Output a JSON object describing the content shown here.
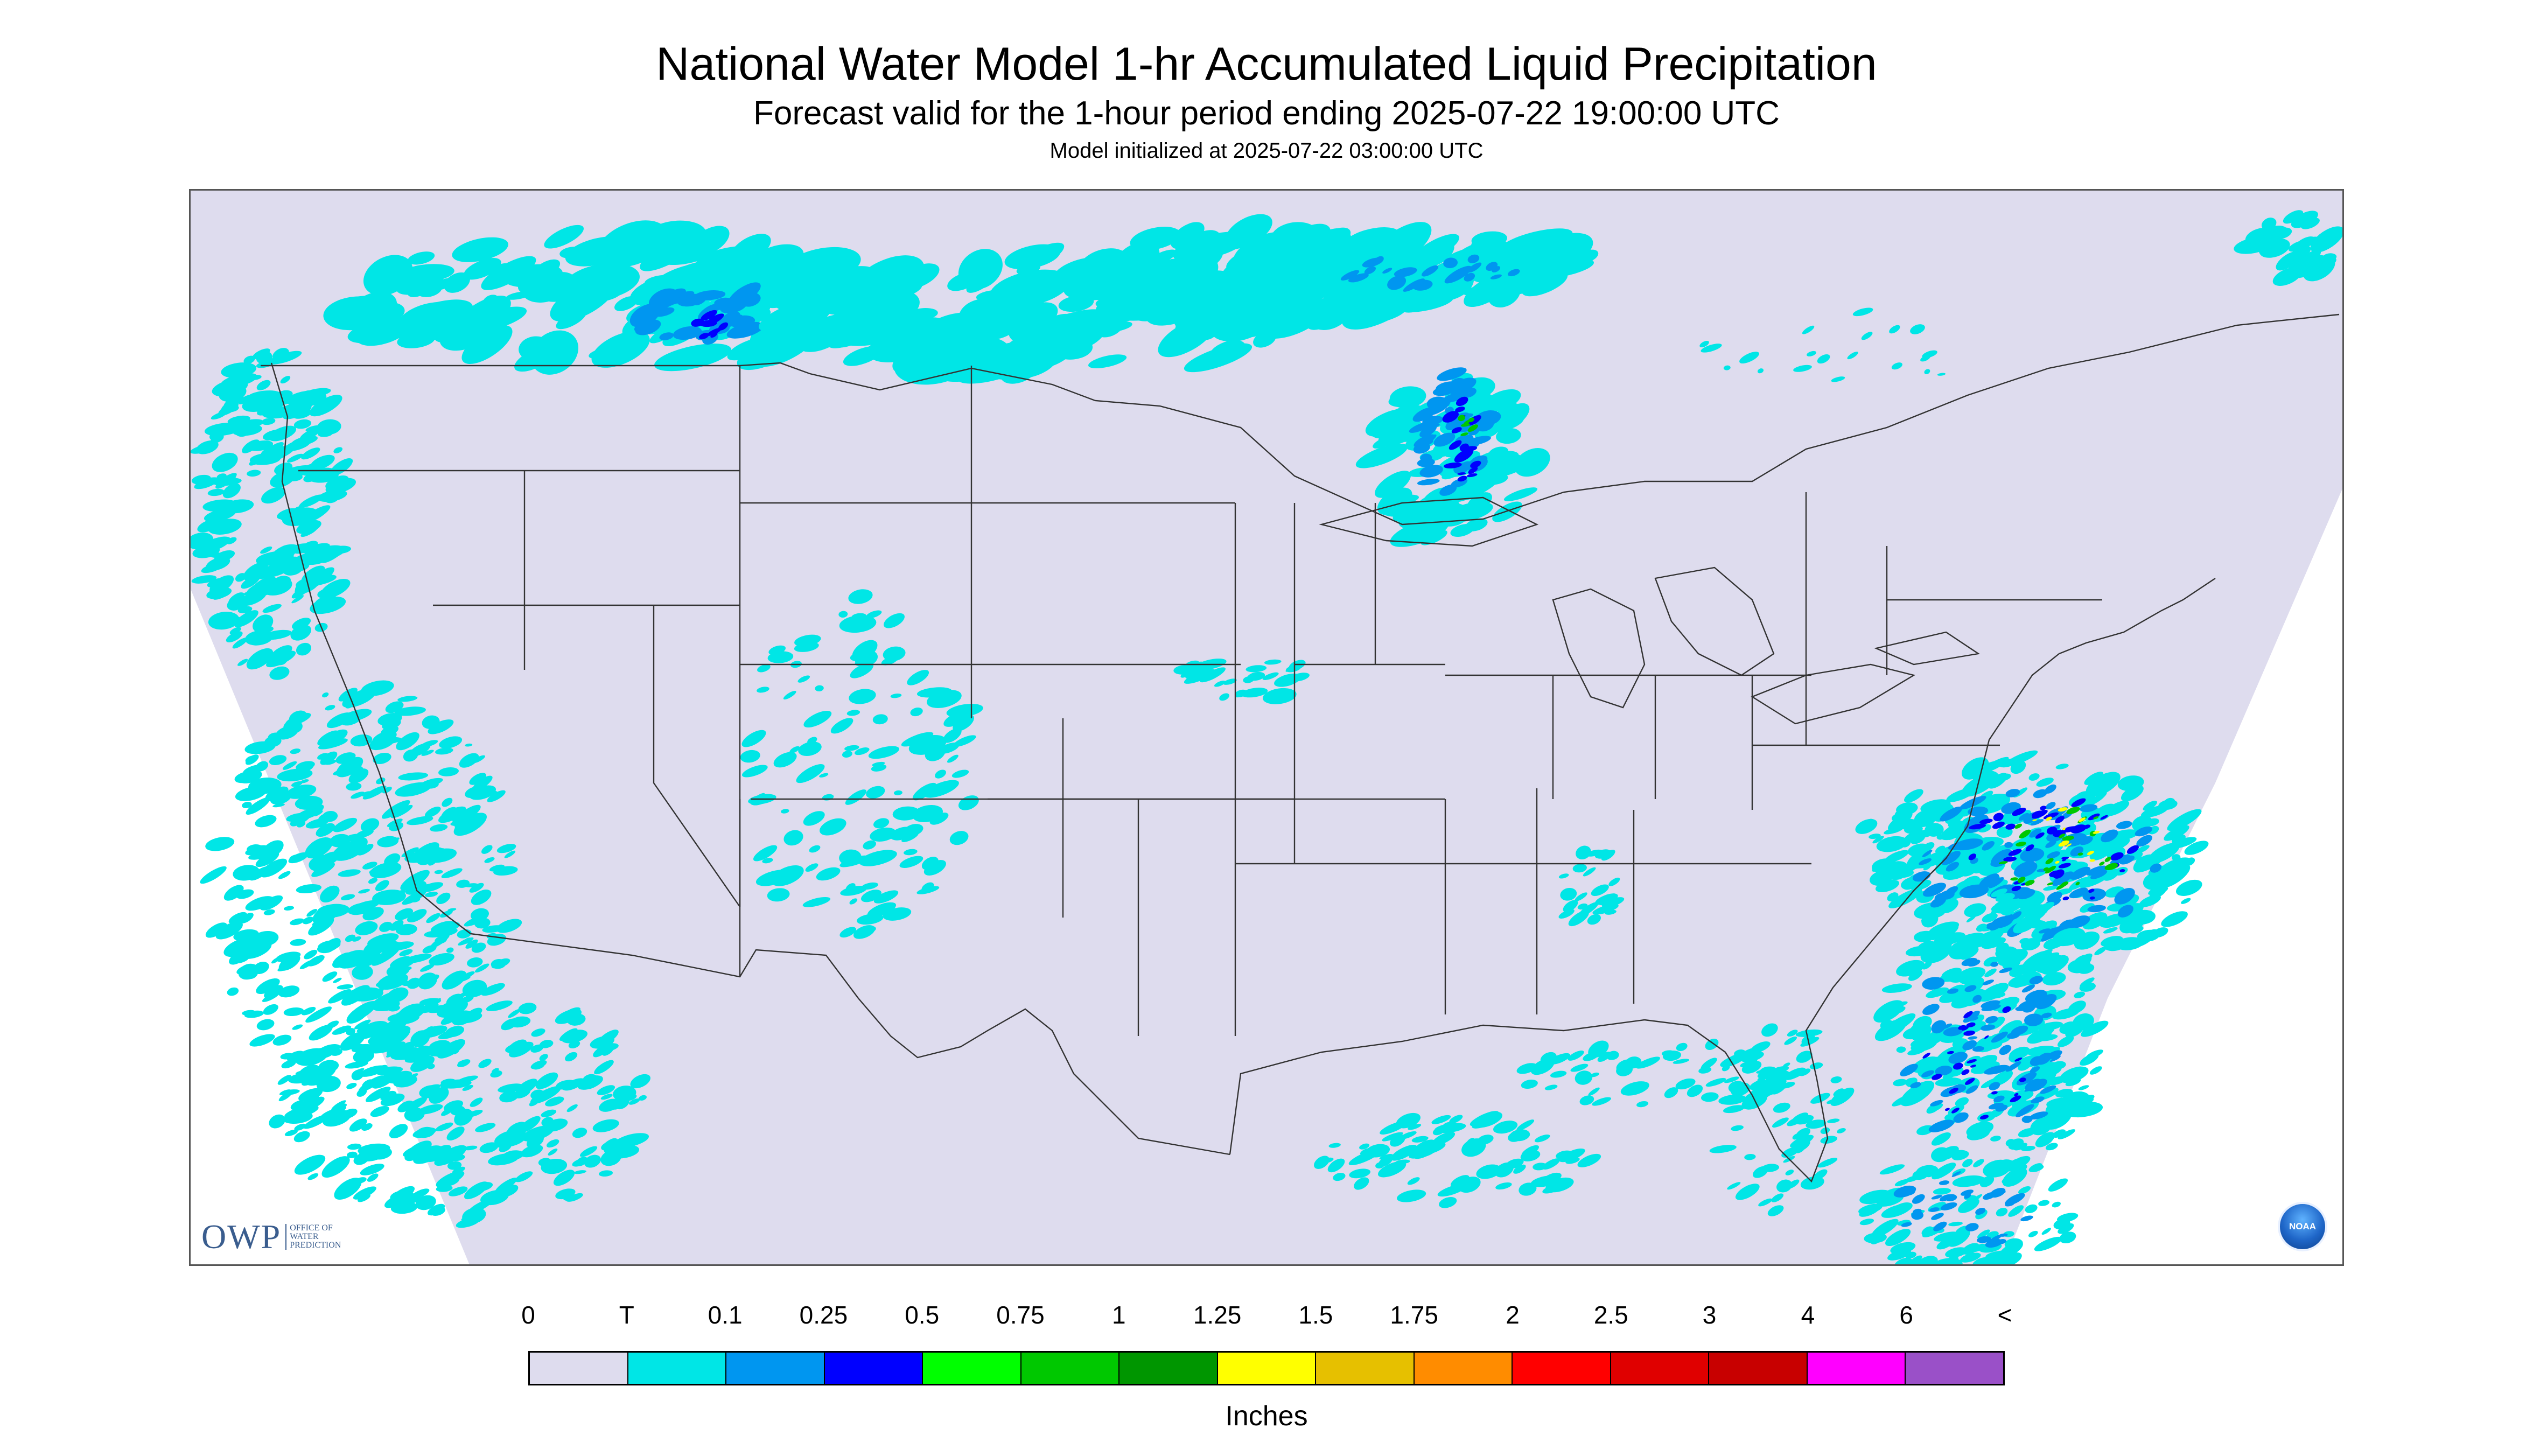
{
  "title": "National Water Model 1-hr Accumulated Liquid Precipitation",
  "subtitle": "Forecast valid for the 1-hour period ending 2025-07-22 19:00:00 UTC",
  "init_line": "Model initialized at 2025-07-22 03:00:00 UTC",
  "logo": {
    "owp_mark": "OWP",
    "owp_text": "Office of Water Prediction",
    "noaa_text": "NOAA"
  },
  "legend": {
    "unit_label": "Inches",
    "tick_labels": [
      "0",
      "T",
      "0.1",
      "0.25",
      "0.5",
      "0.75",
      "1",
      "1.25",
      "1.5",
      "1.75",
      "2",
      "2.5",
      "3",
      "4",
      "6",
      "<"
    ],
    "colors": [
      "#dedcee",
      "#00e6e6",
      "#0096f0",
      "#0000ff",
      "#00ff00",
      "#00c800",
      "#009600",
      "#ffff00",
      "#e6c000",
      "#ff8c00",
      "#ff0000",
      "#e00000",
      "#c80000",
      "#ff00ff",
      "#9a50c8"
    ]
  },
  "map_colors": {
    "background": "#dedcee",
    "outside_domain": "#ffffff",
    "borders": "#333333",
    "light_precip": "#00e6e6",
    "moderate_precip": "#0096f0",
    "heavy_precip": "#0000ff",
    "very_heavy_precip": "#00c800",
    "extreme_precip": "#ffff00"
  }
}
